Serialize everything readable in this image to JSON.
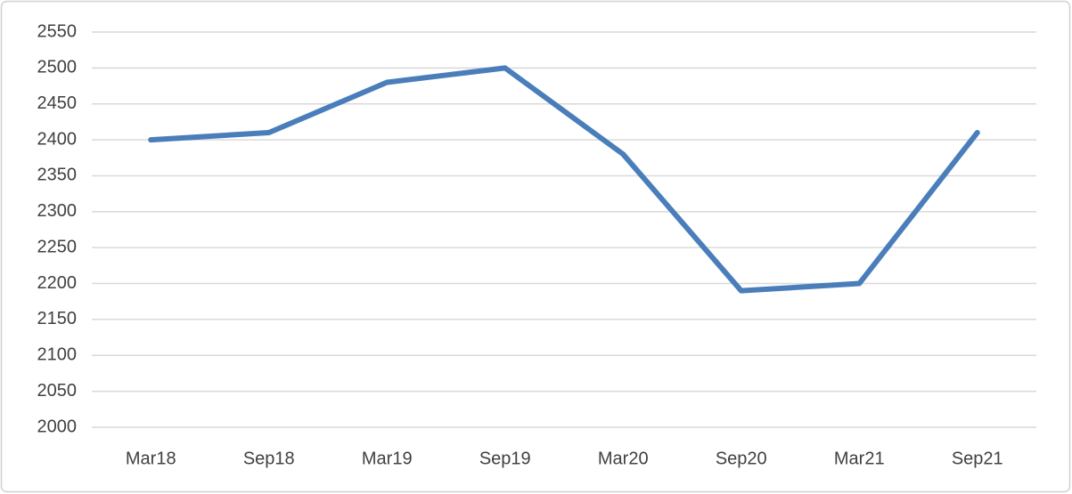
{
  "chart_data": {
    "type": "line",
    "categories": [
      "Mar18",
      "Sep18",
      "Mar19",
      "Sep19",
      "Mar20",
      "Sep20",
      "Mar21",
      "Sep21"
    ],
    "series": [
      {
        "color": "#4a7ebb",
        "values": [
          2400,
          2410,
          2480,
          2500,
          2380,
          2190,
          2200,
          2410
        ]
      }
    ],
    "ylim": [
      2000,
      2550
    ],
    "yticks": [
      2000,
      2050,
      2100,
      2150,
      2200,
      2250,
      2300,
      2350,
      2400,
      2450,
      2500,
      2550
    ],
    "grid": true
  }
}
